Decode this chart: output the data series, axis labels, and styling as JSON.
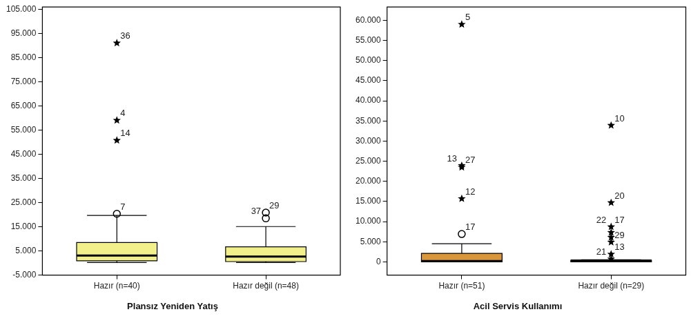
{
  "chart_data": [
    {
      "type": "box",
      "xlabel": "Plansız Yeniden Yatış",
      "categories": [
        "Hazır (n=40)",
        "Hazır değil (n=48)"
      ],
      "ylim": [
        -5000,
        106000
      ],
      "yticks": [
        {
          "value": -5000,
          "label": "-5.000"
        },
        {
          "value": 5000,
          "label": "5.000"
        },
        {
          "value": 15000,
          "label": "15.000"
        },
        {
          "value": 25000,
          "label": "25.000"
        },
        {
          "value": 35000,
          "label": "35.000"
        },
        {
          "value": 45000,
          "label": "45.000"
        },
        {
          "value": 55000,
          "label": "55.000"
        },
        {
          "value": 65000,
          "label": "65.000"
        },
        {
          "value": 75000,
          "label": "75.000"
        },
        {
          "value": 85000,
          "label": "85.000"
        },
        {
          "value": 95000,
          "label": "95.000"
        },
        {
          "value": 105000,
          "label": "105.000"
        }
      ],
      "series": [
        {
          "type": "box",
          "colors": [
            "#f2f08a",
            "#f2f08a"
          ],
          "boxes": [
            {
              "low": 200,
              "q1": 900,
              "median": 3100,
              "q3": 8500,
              "high": 19700
            },
            {
              "low": 200,
              "q1": 600,
              "median": 2700,
              "q3": 6700,
              "high": 15100
            }
          ]
        },
        {
          "type": "scatter",
          "marker": "circle",
          "color": "#000000",
          "x": [
            "Hazır (n=40)",
            "Hazır değil (n=48)",
            "Hazır değil (n=48)"
          ],
          "values": [
            20400,
            20900,
            18500
          ]
        },
        {
          "type": "scatter",
          "marker": "star",
          "color": "#000000",
          "x": [
            "Hazır (n=40)",
            "Hazır (n=40)",
            "Hazır (n=40)"
          ],
          "values": [
            91100,
            59100,
            50800
          ]
        }
      ],
      "annotations": [
        {
          "text": "36",
          "x": "Hazır (n=40)",
          "y": 91100
        },
        {
          "text": "4",
          "x": "Hazır (n=40)",
          "y": 59100
        },
        {
          "text": "14",
          "x": "Hazır (n=40)",
          "y": 50800
        },
        {
          "text": "7",
          "x": "Hazır (n=40)",
          "y": 20400
        },
        {
          "text": "29",
          "x": "Hazır değil (n=48)",
          "y": 20900
        },
        {
          "text": "37",
          "x": "Hazır değil (n=48)",
          "y": 18500
        }
      ]
    },
    {
      "type": "box",
      "xlabel": "Acil Servis Kullanımı",
      "categories": [
        "Hazır (n=51)",
        "Hazır değil (n=29)"
      ],
      "ylim": [
        -3300,
        63300
      ],
      "yticks": [
        {
          "value": 0,
          "label": "0"
        },
        {
          "value": 5000,
          "label": "5.000"
        },
        {
          "value": 10000,
          "label": "10.000"
        },
        {
          "value": 15000,
          "label": "15.000"
        },
        {
          "value": 20000,
          "label": "20.000"
        },
        {
          "value": 25000,
          "label": "25.000"
        },
        {
          "value": 30000,
          "label": "30.000"
        },
        {
          "value": 35000,
          "label": "35.000"
        },
        {
          "value": 40000,
          "label": "40.000"
        },
        {
          "value": 45000,
          "label": "45.000"
        },
        {
          "value": 50000,
          "label": "50.000"
        },
        {
          "value": 55000,
          "label": "55.000"
        },
        {
          "value": 60000,
          "label": "60.000"
        }
      ],
      "series": [
        {
          "type": "box",
          "colors": [
            "#d9963a",
            "#3a3a3a"
          ],
          "boxes": [
            {
              "low": 0,
              "q1": 0,
              "median": 200,
              "q3": 2100,
              "high": 4500
            },
            {
              "low": 0,
              "q1": 0,
              "median": 300,
              "q3": 400,
              "high": 500
            }
          ]
        },
        {
          "type": "scatter",
          "marker": "circle",
          "color": "#000000",
          "x": [
            "Hazır (n=51)"
          ],
          "values": [
            6900
          ]
        },
        {
          "type": "scatter",
          "marker": "star",
          "color": "#000000",
          "x": [
            "Hazır (n=51)",
            "Hazır (n=51)",
            "Hazır (n=51)",
            "Hazır (n=51)",
            "Hazır değil (n=29)",
            "Hazır değil (n=29)",
            "Hazır değil (n=29)",
            "Hazır değil (n=29)",
            "Hazır değil (n=29)",
            "Hazır değil (n=29)",
            "Hazır değil (n=29)",
            "Hazır değil (n=29)"
          ],
          "values": [
            59000,
            23900,
            23500,
            15700,
            33900,
            14700,
            8700,
            7300,
            6100,
            4900,
            1900,
            700
          ]
        }
      ],
      "annotations": [
        {
          "text": "5",
          "x": "Hazır (n=51)",
          "y": 59000
        },
        {
          "text": "27",
          "x": "Hazır (n=51)",
          "y": 23500
        },
        {
          "text": "13",
          "x": "Hazır (n=51)",
          "y": 23900
        },
        {
          "text": "12",
          "x": "Hazır (n=51)",
          "y": 15700
        },
        {
          "text": "17",
          "x": "Hazır (n=51)",
          "y": 6900
        },
        {
          "text": "10",
          "x": "Hazır değil (n=29)",
          "y": 33900
        },
        {
          "text": "20",
          "x": "Hazır değil (n=29)",
          "y": 14700
        },
        {
          "text": "17",
          "x": "Hazır değil (n=29)",
          "y": 8700
        },
        {
          "text": "22",
          "x": "Hazır değil (n=29)",
          "y": 8700
        },
        {
          "text": "29",
          "x": "Hazır değil (n=29)",
          "y": 4900
        },
        {
          "text": "13",
          "x": "Hazır değil (n=29)",
          "y": 1900
        },
        {
          "text": "21",
          "x": "Hazır değil (n=29)",
          "y": 700
        }
      ]
    }
  ]
}
